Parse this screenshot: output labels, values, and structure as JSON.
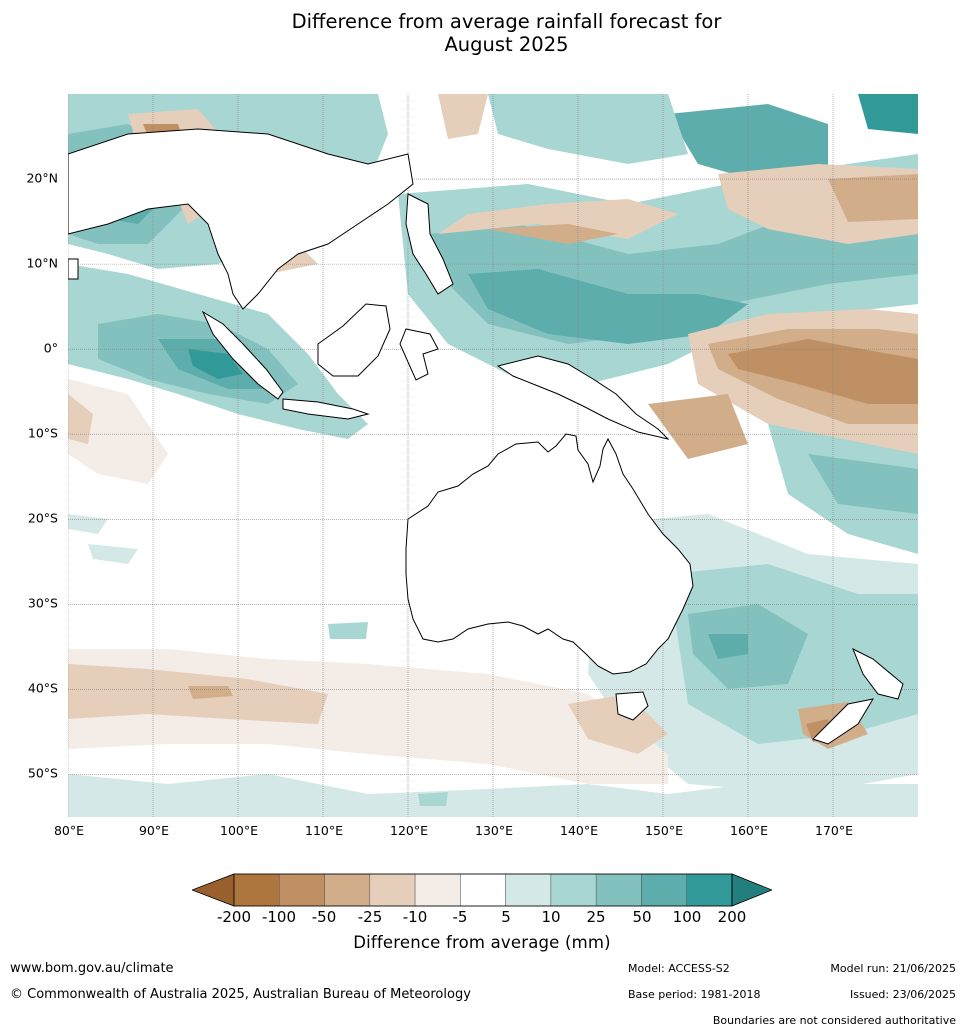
{
  "title": {
    "line1": "Difference from average rainfall forecast for",
    "line2": "August 2025"
  },
  "map": {
    "lat_labels": [
      {
        "label": "20°N",
        "lat": 20
      },
      {
        "label": "10°N",
        "lat": 10
      },
      {
        "label": "0°",
        "lat": 0
      },
      {
        "label": "10°S",
        "lat": -10
      },
      {
        "label": "20°S",
        "lat": -20
      },
      {
        "label": "30°S",
        "lat": -30
      },
      {
        "label": "40°S",
        "lat": -40
      },
      {
        "label": "50°S",
        "lat": -50
      }
    ],
    "lon_labels": [
      {
        "label": "80°E",
        "lon": 80
      },
      {
        "label": "90°E",
        "lon": 90
      },
      {
        "label": "100°E",
        "lon": 100
      },
      {
        "label": "110°E",
        "lon": 110
      },
      {
        "label": "120°E",
        "lon": 120
      },
      {
        "label": "130°E",
        "lon": 130
      },
      {
        "label": "140°E",
        "lon": 140
      },
      {
        "label": "150°E",
        "lon": 150
      },
      {
        "label": "160°E",
        "lon": 160
      },
      {
        "label": "170°E",
        "lon": 170
      }
    ],
    "extent": {
      "lon_min": 80,
      "lon_max": 180,
      "lat_min": -55,
      "lat_max": 30
    },
    "colors": {
      "ocean_neutral": "#ffffff",
      "land": "#ffffff",
      "coastline": "#000000",
      "borders": "#888888"
    }
  },
  "colorbar": {
    "label": "Difference from average (mm)",
    "ticks": [
      "-200",
      "-100",
      "-50",
      "-25",
      "-10",
      "-5",
      "5",
      "10",
      "25",
      "50",
      "100",
      "200"
    ],
    "bins": [
      {
        "range": "-200 to -100",
        "color": "#ad763f"
      },
      {
        "range": "-100 to -50",
        "color": "#c09065"
      },
      {
        "range": "-50 to -25",
        "color": "#d2ad8a"
      },
      {
        "range": "-25 to -10",
        "color": "#e5cfbb"
      },
      {
        "range": "-10 to -5",
        "color": "#f4ece6"
      },
      {
        "range": "-5 to 5",
        "color": "#ffffff"
      },
      {
        "range": "5 to 10",
        "color": "#d4e9e7"
      },
      {
        "range": "10 to 25",
        "color": "#a8d6d3"
      },
      {
        "range": "25 to 50",
        "color": "#83c1bf"
      },
      {
        "range": "50 to 100",
        "color": "#5cadab"
      },
      {
        "range": "100 to 200",
        "color": "#319997"
      }
    ],
    "extend_low_color": "#99602d",
    "extend_high_color": "#237f7d"
  },
  "footer": {
    "url": "www.bom.gov.au/climate",
    "copyright": "© Commonwealth of Australia 2025, Australian Bureau of Meteorology",
    "model": "Model: ACCESS-S2",
    "base_period": "Base period: 1981-2018",
    "model_run": "Model run: 21/06/2025",
    "issued": "Issued: 23/06/2025",
    "boundaries_note": "Boundaries are not considered authoritative"
  }
}
